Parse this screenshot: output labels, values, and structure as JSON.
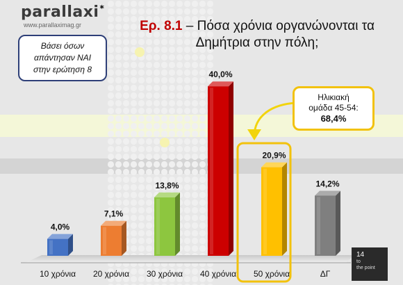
{
  "header": {
    "logo_text": "parallaxi",
    "logo_mark": "*",
    "logo_url": "www.parallaximag.gr",
    "title_number": "Ερ. 8.1",
    "title_dash": " – ",
    "title_line1": "Πόσα χρόνια οργανώνονται τα",
    "title_line2": "Δημήτρια στην πόλη;"
  },
  "base_note": {
    "line1": "Βάσει όσων",
    "line2": "απάντησαν ΝΑΙ",
    "line3": "στην ερώτηση 8"
  },
  "callout": {
    "line1": "Ηλικιακή",
    "line2": "ομάδα 45-54:",
    "value": "68,4%"
  },
  "badge": {
    "number": "14",
    "brand_line1": "to",
    "brand_line2": "the point"
  },
  "chart_data": {
    "type": "bar",
    "categories": [
      "10 χρόνια",
      "20 χρόνια",
      "30 χρόνια",
      "40 χρόνια",
      "50 χρόνια",
      "ΔΓ"
    ],
    "values": [
      4.0,
      7.1,
      13.8,
      40.0,
      20.9,
      14.2
    ],
    "value_labels": [
      "4,0%",
      "7,1%",
      "13,8%",
      "40,0%",
      "20,9%",
      "14,2%"
    ],
    "colors": [
      "#4472c4",
      "#ed7d31",
      "#8dc63f",
      "#cc0000",
      "#ffc000",
      "#7f7f7f"
    ],
    "highlight_category": "50 χρόνια",
    "highlight_color": "#f2c20d",
    "title": "",
    "xlabel": "",
    "ylabel": "",
    "ylim": [
      0,
      42
    ],
    "grid": false,
    "legend": "none"
  }
}
